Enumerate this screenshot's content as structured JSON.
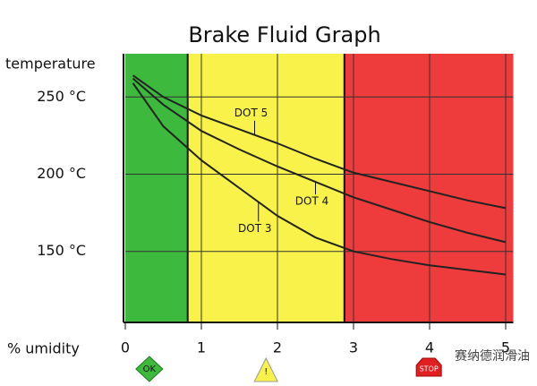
{
  "chart_data": {
    "type": "line",
    "title": "Brake Fluid Graph",
    "y_label": "temperature",
    "x_label": "% umidity",
    "x": [
      0.1,
      0.5,
      1,
      1.5,
      2,
      2.5,
      3,
      3.5,
      4,
      4.5,
      5
    ],
    "series": [
      {
        "name": "DOT 5",
        "color": "#222222",
        "values": [
          264,
          250,
          238,
          229,
          220,
          210,
          201,
          195,
          189,
          183,
          178
        ]
      },
      {
        "name": "DOT 4",
        "color": "#222222",
        "values": [
          262,
          245,
          228,
          216,
          205,
          195,
          185,
          177,
          169,
          162,
          156
        ]
      },
      {
        "name": "DOT 3",
        "color": "#222222",
        "values": [
          259,
          231,
          209,
          191,
          173,
          159,
          150,
          145,
          141,
          138,
          135
        ]
      }
    ],
    "zones": [
      {
        "from": 0,
        "to": 0.82,
        "color": "#3dba3d",
        "label": "OK"
      },
      {
        "from": 0.82,
        "to": 2.88,
        "color": "#f8f24a",
        "label": "!"
      },
      {
        "from": 2.88,
        "to": 5.1,
        "color": "#ee3b3b",
        "label": "STOP"
      }
    ],
    "xlim": [
      0,
      5.1
    ],
    "ylim": [
      104,
      278
    ],
    "xticks": [
      0,
      1,
      2,
      3,
      4,
      5
    ],
    "yticks": [
      {
        "value": 150,
        "label": "150 °C"
      },
      {
        "value": 200,
        "label": "200 °C"
      },
      {
        "value": 250,
        "label": "250 °C"
      }
    ],
    "grid": true,
    "watermark": "赛纳德润滑油"
  }
}
